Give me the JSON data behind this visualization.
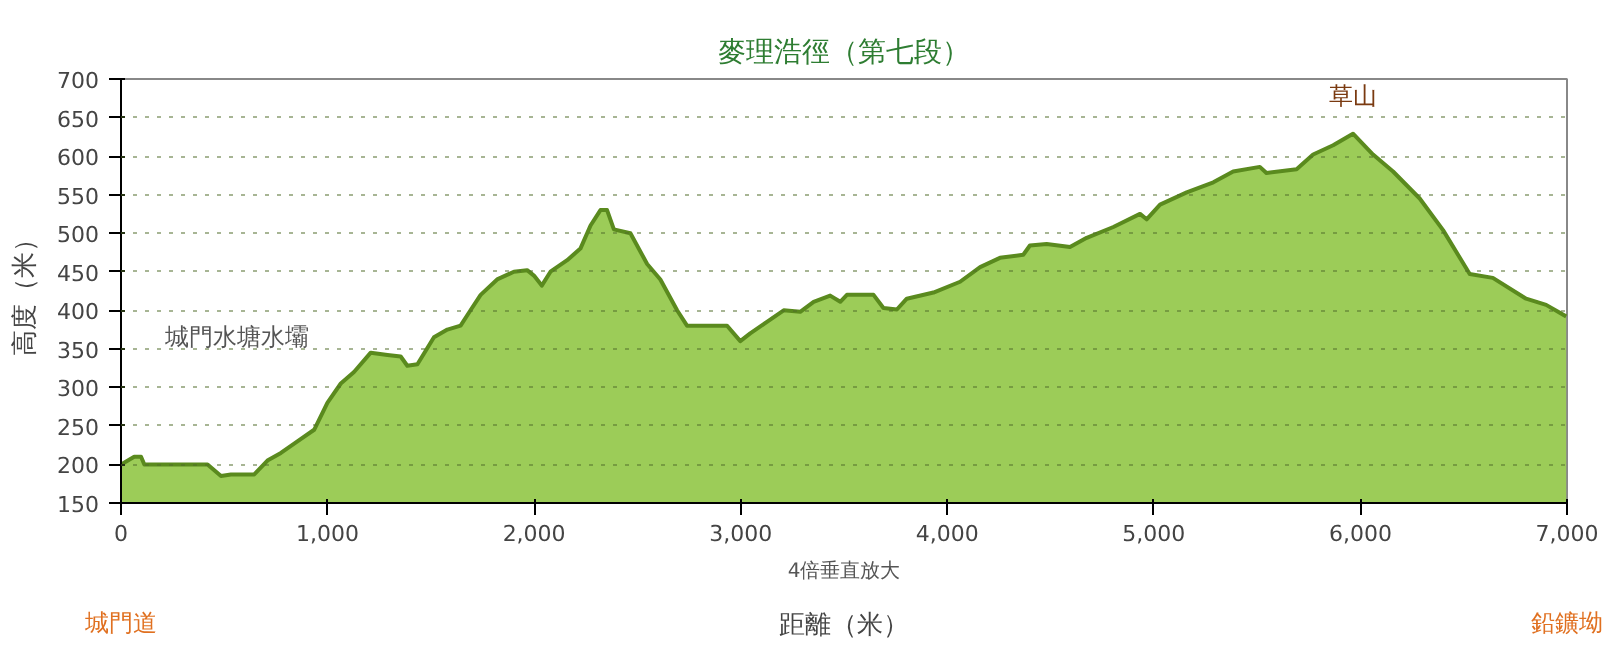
{
  "chart_data": {
    "type": "area",
    "title": "麥理浩徑（第七段）",
    "xlabel": "距離（米）",
    "ylabel": "高度（米）",
    "x": [
      0,
      64,
      97,
      113,
      419,
      484,
      532,
      645,
      709,
      774,
      854,
      935,
      999,
      1064,
      1128,
      1209,
      1290,
      1354,
      1386,
      1435,
      1515,
      1580,
      1644,
      1692,
      1741,
      1821,
      1902,
      1966,
      1999,
      2037,
      2079,
      2160,
      2224,
      2273,
      2321,
      2353,
      2386,
      2466,
      2547,
      2611,
      2692,
      2740,
      2934,
      2998,
      3046,
      3127,
      3208,
      3288,
      3353,
      3433,
      3482,
      3514,
      3643,
      3691,
      3756,
      3804,
      3933,
      4062,
      4159,
      4255,
      4368,
      4400,
      4481,
      4594,
      4675,
      4804,
      4933,
      4965,
      5030,
      5159,
      5288,
      5384,
      5513,
      5545,
      5691,
      5771,
      5868,
      5964,
      6061,
      6158,
      6287,
      6400,
      6529,
      6641,
      6802,
      6899,
      6996
    ],
    "series": [
      {
        "color": "#9ccc58",
        "values": [
          200,
          210,
          210,
          200,
          200,
          185,
          187,
          187,
          205,
          215,
          230,
          245,
          280,
          305,
          320,
          345,
          342,
          340,
          328,
          330,
          365,
          375,
          380,
          400,
          420,
          440,
          450,
          452,
          445,
          432,
          450,
          465,
          480,
          510,
          530,
          530,
          505,
          500,
          460,
          440,
          400,
          380,
          380,
          360,
          370,
          385,
          400,
          398,
          411,
          419,
          411,
          420,
          420,
          403,
          401,
          415,
          423,
          437,
          456,
          468,
          472,
          484,
          486,
          482,
          494,
          508,
          525,
          518,
          537,
          553,
          566,
          580,
          586,
          578,
          583,
          602,
          614,
          629,
          602,
          580,
          545,
          504,
          447,
          442,
          415,
          407,
          392
        ]
      }
    ],
    "xlim": [
      0,
      7000
    ],
    "ylim": [
      150,
      700
    ],
    "xticks": [
      0,
      {
        "value": 1000,
        "label": "1,000"
      },
      {
        "value": 2000,
        "label": "2,000"
      },
      {
        "value": 3000,
        "label": "3,000"
      },
      {
        "value": 4000,
        "label": "4,000"
      },
      {
        "value": 5000,
        "label": "5,000"
      },
      {
        "value": 6000,
        "label": "6,000"
      },
      {
        "value": 7000,
        "label": "7,000"
      }
    ],
    "yticks": [
      150,
      200,
      250,
      300,
      350,
      400,
      450,
      500,
      550,
      600,
      650,
      700
    ],
    "grid": "y",
    "line_style": "solid",
    "annotations": [
      {
        "text": "草山",
        "x": 5964,
        "y": 629
      },
      "城門水塘水壩",
      "城門道",
      "鉛鑛坳",
      "4倍垂直放大"
    ]
  }
}
